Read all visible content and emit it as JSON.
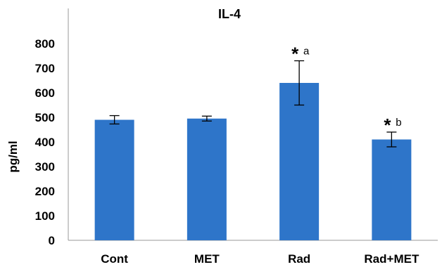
{
  "chart_data": {
    "type": "bar",
    "title": "IL-4",
    "xlabel": "",
    "ylabel": "pg/ml",
    "categories": [
      "Cont",
      "MET",
      "Rad",
      "Rad+MET"
    ],
    "values": [
      490,
      495,
      640,
      410
    ],
    "errors": [
      17,
      10,
      90,
      30
    ],
    "ylim": [
      0,
      800
    ],
    "yticks": [
      0,
      100,
      200,
      300,
      400,
      500,
      600,
      700,
      800
    ],
    "grid": false,
    "legend": "none",
    "bar_color": "#2e75c9",
    "annotations": [
      {
        "category": "Rad",
        "star": "*",
        "letter": "a"
      },
      {
        "category": "Rad+MET",
        "star": "*",
        "letter": "b"
      }
    ]
  }
}
